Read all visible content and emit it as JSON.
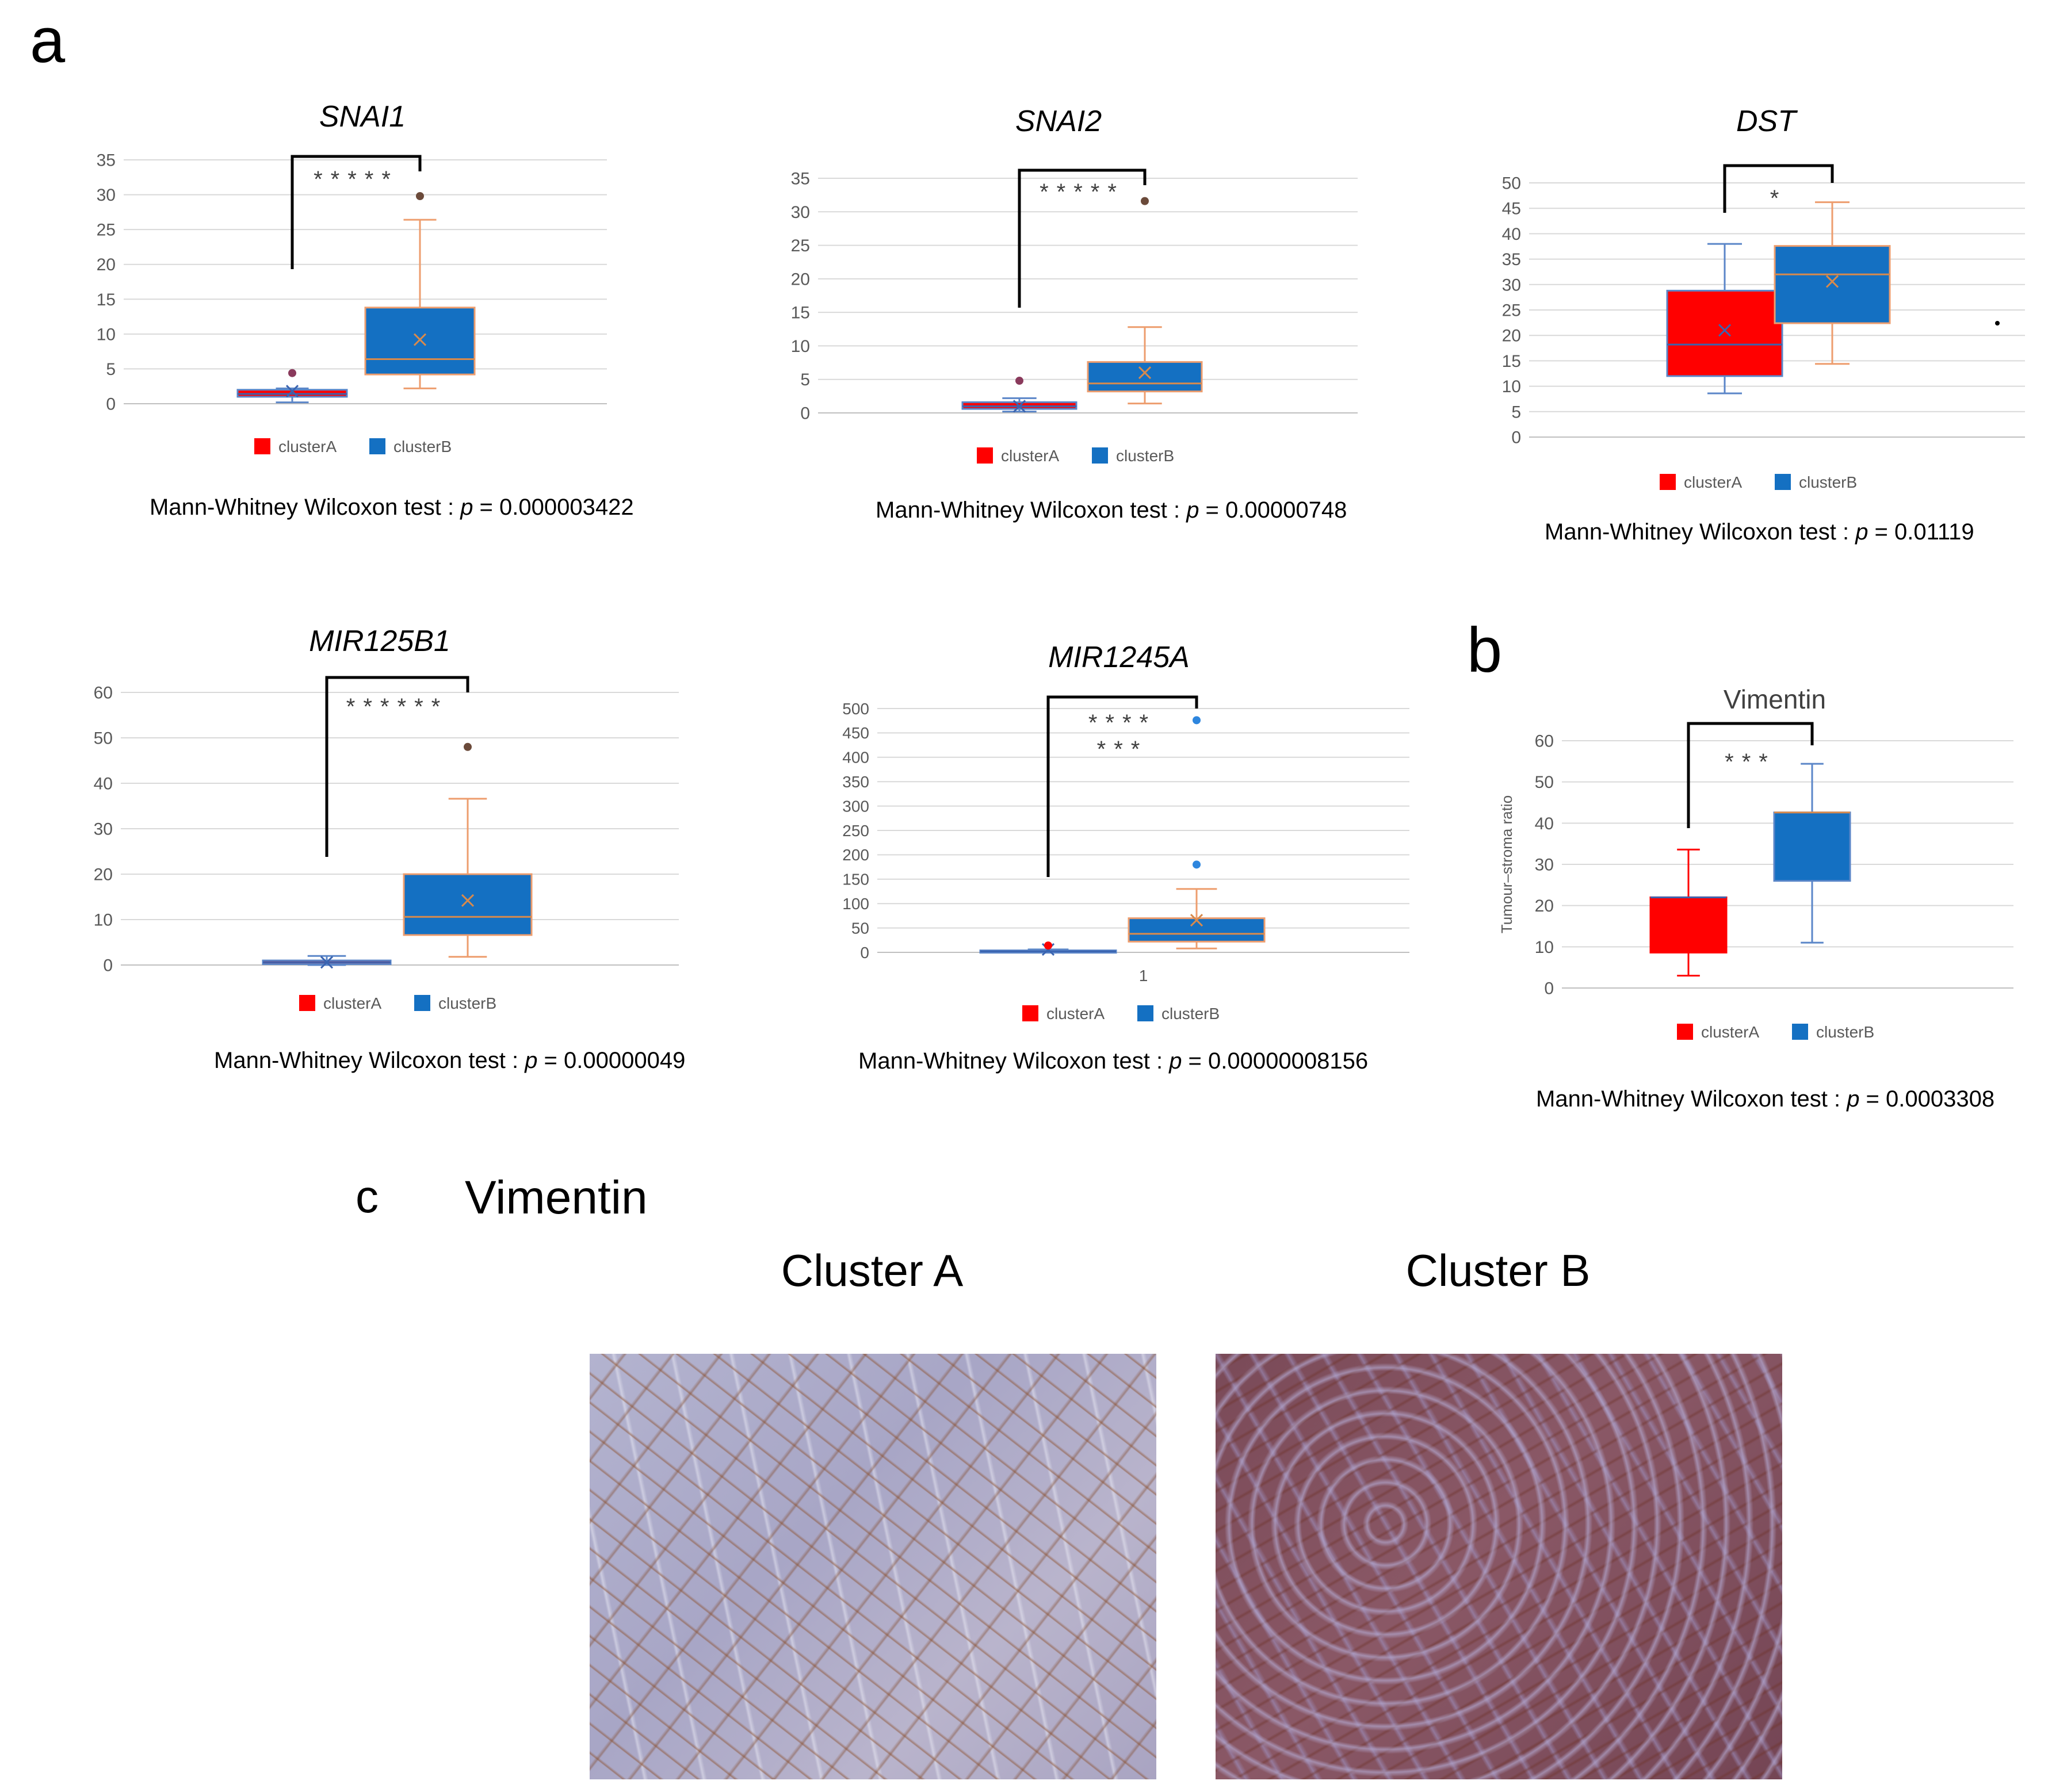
{
  "panel_labels": {
    "a": "a",
    "b": "b",
    "c": "c"
  },
  "colors": {
    "clusterA": "#ff0000",
    "clusterB": "#1470c2",
    "whisker_A": "#5b86c8",
    "whisker_B": "#ed9d6e",
    "grid": "#d9d9d9",
    "axis_text": "#595959"
  },
  "legend": {
    "a": "clusterA",
    "b": "clusterB"
  },
  "chart_data": [
    {
      "type": "box",
      "title": "SNAI1",
      "italic": true,
      "yticks": [
        0,
        5,
        10,
        15,
        20,
        25,
        30,
        35
      ],
      "ylim": [
        0,
        35
      ],
      "xlabel": "",
      "ylabel": "",
      "series": [
        {
          "name": "clusterA",
          "min": 0.2,
          "q1": 1.0,
          "median": 1.4,
          "q3": 2.0,
          "max": 2.2,
          "mean": 1.8,
          "outliers": [
            4.4
          ]
        },
        {
          "name": "clusterB",
          "min": 2.2,
          "q1": 4.2,
          "median": 6.4,
          "q3": 13.8,
          "max": 26.4,
          "mean": 9.2,
          "outliers": [
            29.8
          ]
        }
      ],
      "significance": "*****",
      "test": "Mann-Whitney Wilcoxon test : ",
      "p_label": "p",
      "p_value": " = 0.000003422"
    },
    {
      "type": "box",
      "title": "SNAI2",
      "italic": true,
      "yticks": [
        0,
        5,
        10,
        15,
        20,
        25,
        30,
        35
      ],
      "ylim": [
        0,
        35
      ],
      "xlabel": "",
      "ylabel": "",
      "series": [
        {
          "name": "clusterA",
          "min": 0.2,
          "q1": 0.6,
          "median": 1.0,
          "q3": 1.6,
          "max": 2.2,
          "mean": 1.0,
          "outliers": [
            4.8
          ]
        },
        {
          "name": "clusterB",
          "min": 1.4,
          "q1": 3.2,
          "median": 4.4,
          "q3": 7.6,
          "max": 12.8,
          "mean": 6.0,
          "outliers": [
            31.6
          ]
        }
      ],
      "significance": "*****",
      "test": "Mann-Whitney Wilcoxon test : ",
      "p_label": "p",
      "p_value": " = 0.00000748"
    },
    {
      "type": "box",
      "title": "DST",
      "italic": true,
      "yticks": [
        0,
        5,
        10,
        15,
        20,
        25,
        30,
        35,
        40,
        45,
        50
      ],
      "ylim": [
        0,
        50
      ],
      "xlabel": "",
      "ylabel": "",
      "series": [
        {
          "name": "clusterA",
          "min": 8.6,
          "q1": 12.0,
          "median": 18.2,
          "q3": 28.8,
          "max": 38.0,
          "mean": 21.0,
          "outliers": []
        },
        {
          "name": "clusterB",
          "min": 14.4,
          "q1": 22.4,
          "median": 32.0,
          "q3": 37.6,
          "max": 46.2,
          "mean": 30.6,
          "outliers": []
        }
      ],
      "significance": "*",
      "test": "Mann-Whitney Wilcoxon test : ",
      "p_label": "p",
      "p_value": " = 0.01119"
    },
    {
      "type": "box",
      "title": "MIR125B1",
      "italic": true,
      "yticks": [
        0,
        10,
        20,
        30,
        40,
        50,
        60
      ],
      "ylim": [
        0,
        60
      ],
      "xlabel": "",
      "ylabel": "",
      "series": [
        {
          "name": "clusterA",
          "min": 0.0,
          "q1": 0.2,
          "median": 0.6,
          "q3": 1.0,
          "max": 2.0,
          "mean": 0.6,
          "outliers": []
        },
        {
          "name": "clusterB",
          "min": 1.8,
          "q1": 6.6,
          "median": 10.6,
          "q3": 20.0,
          "max": 36.6,
          "mean": 14.2,
          "outliers": [
            48.0
          ]
        }
      ],
      "significance": "******",
      "test": "Mann-Whitney Wilcoxon test : ",
      "p_label": "p",
      "p_value": " = 0.00000049"
    },
    {
      "type": "box",
      "title": "MIR1245A",
      "italic": true,
      "yticks": [
        0,
        50,
        100,
        150,
        200,
        250,
        300,
        350,
        400,
        450,
        500
      ],
      "ylim": [
        0,
        500
      ],
      "xlabel": "",
      "ylabel": "",
      "xtick": "1",
      "series": [
        {
          "name": "clusterA",
          "min": 0,
          "q1": 0,
          "median": 2,
          "q3": 4,
          "max": 6,
          "mean": 6,
          "outliers": [
            14
          ]
        },
        {
          "name": "clusterB",
          "min": 8,
          "q1": 22,
          "median": 38,
          "q3": 70,
          "max": 130,
          "mean": 66,
          "outliers": [
            180,
            476
          ]
        }
      ],
      "significance": "****",
      "significance2": "***",
      "test": "Mann-Whitney Wilcoxon test : ",
      "p_label": "p",
      "p_value": " = 0.00000008156"
    },
    {
      "type": "box",
      "title": "Vimentin",
      "italic": false,
      "yticks": [
        0,
        10,
        20,
        30,
        40,
        50,
        60
      ],
      "ylim": [
        0,
        60
      ],
      "xlabel": "",
      "ylabel": "Tumour–stroma ratio",
      "series": [
        {
          "name": "clusterA",
          "min": 3.0,
          "q1": 8.6,
          "median": 22.0,
          "q3": 22.0,
          "max": 33.6,
          "outliers": []
        },
        {
          "name": "clusterB",
          "min": 11.0,
          "q1": 26.0,
          "median": 42.6,
          "q3": 42.6,
          "max": 54.4,
          "outliers": []
        }
      ],
      "significance": "***",
      "test": "Mann-Whitney Wilcoxon test : ",
      "p_label": "p",
      "p_value": " = 0.0003308"
    }
  ],
  "panel_c": {
    "title": "Vimentin",
    "left_label": "Cluster A",
    "right_label": "Cluster B"
  }
}
